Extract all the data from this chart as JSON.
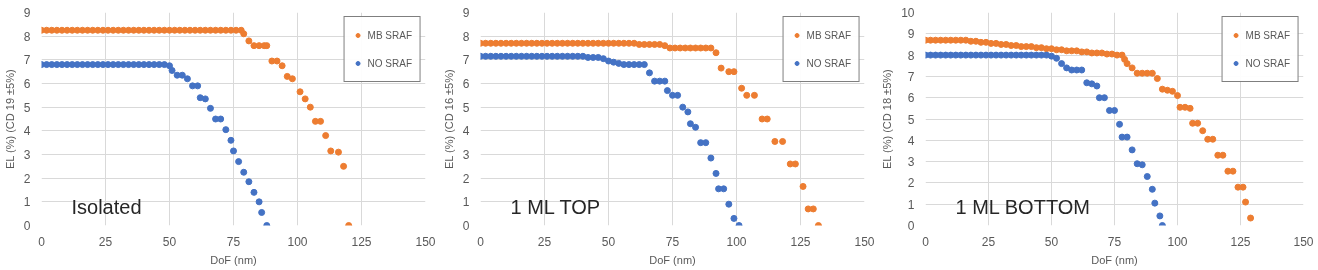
{
  "chart_data": [
    {
      "type": "scatter",
      "xlabel": "DoF (nm)",
      "ylabel": "EL (%) (CD 19 ±5%)",
      "annotations": [
        "Isolated"
      ],
      "xlim": [
        0,
        150
      ],
      "ylim": [
        0,
        9
      ],
      "xticks": [
        0,
        25,
        50,
        75,
        100,
        125,
        150
      ],
      "yticks": [
        0,
        1,
        2,
        3,
        4,
        5,
        6,
        7,
        8,
        9
      ],
      "grid": true,
      "legend": "top right",
      "marker": "circle",
      "series": [
        {
          "name": "MB SRAF",
          "color": "#ed7d31",
          "x": [
            0,
            2,
            4,
            6,
            8,
            10,
            12,
            14,
            16,
            18,
            20,
            22,
            24,
            26,
            28,
            30,
            32,
            34,
            36,
            38,
            40,
            42,
            44,
            46,
            48,
            50,
            52,
            54,
            56,
            58,
            60,
            62,
            64,
            66,
            68,
            70,
            72,
            74,
            76,
            78,
            79,
            81,
            83,
            85,
            87,
            88,
            90,
            92,
            94,
            96,
            98,
            101,
            103,
            105,
            107,
            109,
            111,
            113,
            116,
            118,
            120
          ],
          "values": [
            8.25,
            8.25,
            8.25,
            8.25,
            8.25,
            8.25,
            8.25,
            8.25,
            8.25,
            8.25,
            8.25,
            8.25,
            8.25,
            8.25,
            8.25,
            8.25,
            8.25,
            8.25,
            8.25,
            8.25,
            8.25,
            8.25,
            8.25,
            8.25,
            8.25,
            8.25,
            8.25,
            8.25,
            8.25,
            8.25,
            8.25,
            8.25,
            8.25,
            8.25,
            8.25,
            8.25,
            8.25,
            8.25,
            8.25,
            8.25,
            8.1,
            7.8,
            7.6,
            7.6,
            7.6,
            7.6,
            6.95,
            6.95,
            6.75,
            6.3,
            6.2,
            5.65,
            5.35,
            5.0,
            4.4,
            4.4,
            3.8,
            3.15,
            3.1,
            2.5,
            0
          ]
        },
        {
          "name": "NO SRAF",
          "color": "#4472c4",
          "x": [
            0,
            2,
            4,
            6,
            8,
            10,
            12,
            14,
            16,
            18,
            20,
            22,
            24,
            26,
            28,
            30,
            32,
            34,
            36,
            38,
            40,
            42,
            44,
            46,
            48,
            50,
            51,
            53,
            55,
            57,
            59,
            61,
            62,
            64,
            66,
            68,
            70,
            72,
            74,
            75,
            77,
            79,
            81,
            83,
            85,
            86,
            88
          ],
          "values": [
            6.8,
            6.8,
            6.8,
            6.8,
            6.8,
            6.8,
            6.8,
            6.8,
            6.8,
            6.8,
            6.8,
            6.8,
            6.8,
            6.8,
            6.8,
            6.8,
            6.8,
            6.8,
            6.8,
            6.8,
            6.8,
            6.8,
            6.8,
            6.8,
            6.8,
            6.75,
            6.55,
            6.35,
            6.35,
            6.2,
            5.9,
            5.9,
            5.4,
            5.35,
            4.95,
            4.5,
            4.5,
            4.05,
            3.6,
            3.15,
            2.7,
            2.25,
            1.85,
            1.4,
            1.0,
            0.55,
            0
          ]
        }
      ]
    },
    {
      "type": "scatter",
      "xlabel": "DoF (nm)",
      "ylabel": "EL (%) (CD 16 ±5%)",
      "annotations": [
        "1 ML TOP"
      ],
      "xlim": [
        0,
        150
      ],
      "ylim": [
        0,
        9
      ],
      "xticks": [
        0,
        25,
        50,
        75,
        100,
        125,
        150
      ],
      "yticks": [
        0,
        1,
        2,
        3,
        4,
        5,
        6,
        7,
        8,
        9
      ],
      "grid": true,
      "legend": "top right",
      "marker": "circle",
      "series": [
        {
          "name": "MB SRAF",
          "color": "#ed7d31",
          "x": [
            0,
            2,
            4,
            6,
            8,
            10,
            12,
            14,
            16,
            18,
            20,
            22,
            24,
            26,
            28,
            30,
            32,
            34,
            36,
            38,
            40,
            42,
            44,
            46,
            48,
            50,
            52,
            54,
            56,
            58,
            60,
            62,
            64,
            66,
            68,
            70,
            72,
            74,
            76,
            78,
            80,
            82,
            84,
            86,
            88,
            90,
            92,
            94,
            97,
            99,
            102,
            104,
            107,
            110,
            112,
            115,
            118,
            121,
            123,
            126,
            128,
            130,
            132
          ],
          "values": [
            7.7,
            7.7,
            7.7,
            7.7,
            7.7,
            7.7,
            7.7,
            7.7,
            7.7,
            7.7,
            7.7,
            7.7,
            7.7,
            7.7,
            7.7,
            7.7,
            7.7,
            7.7,
            7.7,
            7.7,
            7.7,
            7.7,
            7.7,
            7.7,
            7.7,
            7.7,
            7.7,
            7.7,
            7.7,
            7.7,
            7.7,
            7.65,
            7.65,
            7.65,
            7.65,
            7.65,
            7.6,
            7.5,
            7.5,
            7.5,
            7.5,
            7.5,
            7.5,
            7.5,
            7.5,
            7.5,
            7.3,
            6.65,
            6.5,
            6.5,
            5.8,
            5.5,
            5.5,
            4.5,
            4.5,
            3.55,
            3.55,
            2.6,
            2.6,
            1.65,
            0.7,
            0.7,
            0
          ]
        },
        {
          "name": "NO SRAF",
          "color": "#4472c4",
          "x": [
            0,
            2,
            4,
            6,
            8,
            10,
            12,
            14,
            16,
            18,
            20,
            22,
            24,
            26,
            28,
            30,
            32,
            34,
            36,
            38,
            40,
            42,
            44,
            46,
            48,
            50,
            52,
            54,
            56,
            58,
            60,
            62,
            64,
            66,
            68,
            70,
            72,
            73,
            75,
            77,
            79,
            81,
            82,
            84,
            86,
            88,
            90,
            92,
            93,
            95,
            97,
            99,
            101
          ],
          "values": [
            7.15,
            7.15,
            7.15,
            7.15,
            7.15,
            7.15,
            7.15,
            7.15,
            7.15,
            7.15,
            7.15,
            7.15,
            7.15,
            7.15,
            7.15,
            7.15,
            7.15,
            7.15,
            7.15,
            7.15,
            7.15,
            7.1,
            7.1,
            7.1,
            7.05,
            6.95,
            6.9,
            6.85,
            6.8,
            6.8,
            6.8,
            6.8,
            6.8,
            6.45,
            6.1,
            6.1,
            6.1,
            5.7,
            5.5,
            5.5,
            5.0,
            4.8,
            4.3,
            4.15,
            3.5,
            3.5,
            2.85,
            2.2,
            1.55,
            1.55,
            0.9,
            0.3,
            0
          ]
        }
      ]
    },
    {
      "type": "scatter",
      "xlabel": "DoF (nm)",
      "ylabel": "EL (%) (CD 18 ±5%)",
      "annotations": [
        "1 ML BOTTOM"
      ],
      "xlim": [
        0,
        150
      ],
      "ylim": [
        0,
        10
      ],
      "xticks": [
        0,
        25,
        50,
        75,
        100,
        125,
        150
      ],
      "yticks": [
        0,
        1,
        2,
        3,
        4,
        5,
        6,
        7,
        8,
        9,
        10
      ],
      "grid": true,
      "legend": "top right",
      "marker": "circle",
      "series": [
        {
          "name": "MB SRAF",
          "color": "#ed7d31",
          "x": [
            0,
            2,
            4,
            6,
            8,
            10,
            12,
            14,
            16,
            18,
            20,
            22,
            24,
            26,
            28,
            30,
            32,
            34,
            36,
            38,
            40,
            42,
            44,
            46,
            48,
            50,
            52,
            54,
            56,
            58,
            60,
            62,
            64,
            66,
            68,
            70,
            72,
            74,
            76,
            78,
            79,
            80,
            82,
            84,
            86,
            88,
            90,
            92,
            94,
            96,
            98,
            100,
            101,
            103,
            105,
            106,
            108,
            110,
            112,
            114,
            116,
            118,
            120,
            122,
            124,
            126,
            127,
            129
          ],
          "values": [
            8.7,
            8.7,
            8.7,
            8.7,
            8.7,
            8.7,
            8.7,
            8.7,
            8.7,
            8.65,
            8.65,
            8.6,
            8.6,
            8.55,
            8.55,
            8.5,
            8.5,
            8.45,
            8.45,
            8.4,
            8.4,
            8.4,
            8.35,
            8.35,
            8.3,
            8.3,
            8.25,
            8.25,
            8.2,
            8.2,
            8.2,
            8.15,
            8.15,
            8.1,
            8.1,
            8.1,
            8.05,
            8.05,
            8.0,
            8.0,
            7.8,
            7.6,
            7.4,
            7.15,
            7.15,
            7.15,
            7.15,
            6.9,
            6.4,
            6.35,
            6.3,
            6.1,
            5.55,
            5.55,
            5.5,
            4.8,
            4.8,
            4.45,
            4.05,
            4.05,
            3.3,
            3.3,
            2.55,
            2.55,
            1.8,
            1.8,
            1.1,
            0.35
          ]
        },
        {
          "name": "NO SRAF",
          "color": "#4472c4",
          "x": [
            0,
            2,
            4,
            6,
            8,
            10,
            12,
            14,
            16,
            18,
            20,
            22,
            24,
            26,
            28,
            30,
            32,
            34,
            36,
            38,
            40,
            42,
            44,
            46,
            48,
            50,
            52,
            54,
            56,
            58,
            60,
            62,
            64,
            66,
            68,
            69,
            71,
            73,
            75,
            77,
            78,
            80,
            82,
            84,
            86,
            88,
            90,
            91,
            93,
            94
          ],
          "values": [
            8.0,
            8.0,
            8.0,
            8.0,
            8.0,
            8.0,
            8.0,
            8.0,
            8.0,
            8.0,
            8.0,
            8.0,
            8.0,
            8.0,
            8.0,
            8.0,
            8.0,
            8.0,
            8.0,
            8.0,
            8.0,
            8.0,
            8.0,
            8.0,
            8.0,
            7.95,
            7.85,
            7.6,
            7.4,
            7.3,
            7.3,
            7.3,
            6.7,
            6.65,
            6.55,
            6.0,
            6.0,
            5.4,
            5.4,
            4.75,
            4.15,
            4.15,
            3.55,
            2.9,
            2.85,
            2.3,
            1.7,
            1.05,
            0.45,
            0
          ]
        }
      ]
    }
  ]
}
